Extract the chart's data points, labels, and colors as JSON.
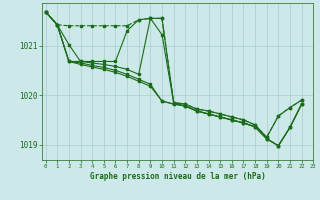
{
  "xlabel": "Graphe pression niveau de la mer (hPa)",
  "bg_color": "#cce8e8",
  "grid_color": "#aacccc",
  "line_color": "#1a6b1a",
  "ylim": [
    1018.7,
    1021.85
  ],
  "xlim": [
    -0.3,
    23
  ],
  "yticks": [
    1019,
    1020,
    1021
  ],
  "xticks": [
    0,
    1,
    2,
    3,
    4,
    5,
    6,
    7,
    8,
    9,
    10,
    11,
    12,
    13,
    14,
    15,
    16,
    17,
    18,
    19,
    20,
    21,
    22,
    23
  ],
  "s1_x": [
    0,
    1,
    2,
    3,
    4,
    5,
    6,
    7,
    8,
    9,
    10,
    11,
    12,
    13,
    14,
    15,
    16,
    17,
    18,
    19,
    20,
    21,
    22
  ],
  "s1_y": [
    1021.68,
    1021.42,
    1021.4,
    1021.4,
    1021.4,
    1021.4,
    1021.4,
    1021.4,
    1021.52,
    1021.55,
    1021.55,
    1019.85,
    1019.82,
    1019.72,
    1019.68,
    1019.62,
    1019.56,
    1019.5,
    1019.4,
    1019.15,
    1019.58,
    1019.75,
    1019.9
  ],
  "s2_x": [
    0,
    1,
    2,
    3,
    4,
    5,
    6,
    7,
    8,
    9,
    10,
    11,
    12,
    13,
    14,
    15,
    16,
    17,
    18,
    19,
    20,
    21,
    22
  ],
  "s2_y": [
    1021.68,
    1021.42,
    1021.02,
    1020.68,
    1020.68,
    1020.68,
    1020.68,
    1021.3,
    1021.52,
    1021.55,
    1021.22,
    1019.85,
    1019.82,
    1019.72,
    1019.68,
    1019.62,
    1019.56,
    1019.5,
    1019.4,
    1019.15,
    1019.58,
    1019.75,
    1019.9
  ],
  "s3_x": [
    0,
    1,
    2,
    3,
    4,
    5,
    6,
    7,
    8,
    9,
    10,
    11,
    12,
    13,
    14,
    15,
    16,
    17,
    18,
    19,
    20,
    21,
    22
  ],
  "s3_y": [
    1021.68,
    1021.42,
    1020.68,
    1020.68,
    1020.65,
    1020.62,
    1020.58,
    1020.52,
    1020.42,
    1021.55,
    1021.55,
    1019.85,
    1019.78,
    1019.68,
    1019.62,
    1019.56,
    1019.5,
    1019.44,
    1019.36,
    1019.12,
    1018.98,
    1019.35,
    1019.82
  ],
  "s4_x": [
    0,
    1,
    2,
    3,
    4,
    5,
    6,
    7,
    8,
    9,
    10,
    11,
    12,
    13,
    14,
    15,
    16,
    17,
    18,
    19,
    20,
    21,
    22
  ],
  "s4_y": [
    1021.68,
    1021.42,
    1020.68,
    1020.65,
    1020.6,
    1020.56,
    1020.5,
    1020.42,
    1020.32,
    1020.22,
    1019.88,
    1019.82,
    1019.78,
    1019.68,
    1019.62,
    1019.56,
    1019.5,
    1019.44,
    1019.36,
    1019.12,
    1018.98,
    1019.35,
    1019.82
  ],
  "s5_x": [
    0,
    1,
    2,
    3,
    4,
    5,
    6,
    7,
    8,
    9,
    10,
    11,
    12,
    13,
    14,
    15,
    16,
    17,
    18,
    19,
    20,
    21,
    22
  ],
  "s5_y": [
    1021.68,
    1021.42,
    1020.68,
    1020.62,
    1020.57,
    1020.52,
    1020.46,
    1020.38,
    1020.28,
    1020.18,
    1019.88,
    1019.82,
    1019.78,
    1019.68,
    1019.62,
    1019.56,
    1019.5,
    1019.44,
    1019.36,
    1019.12,
    1018.98,
    1019.35,
    1019.82
  ]
}
